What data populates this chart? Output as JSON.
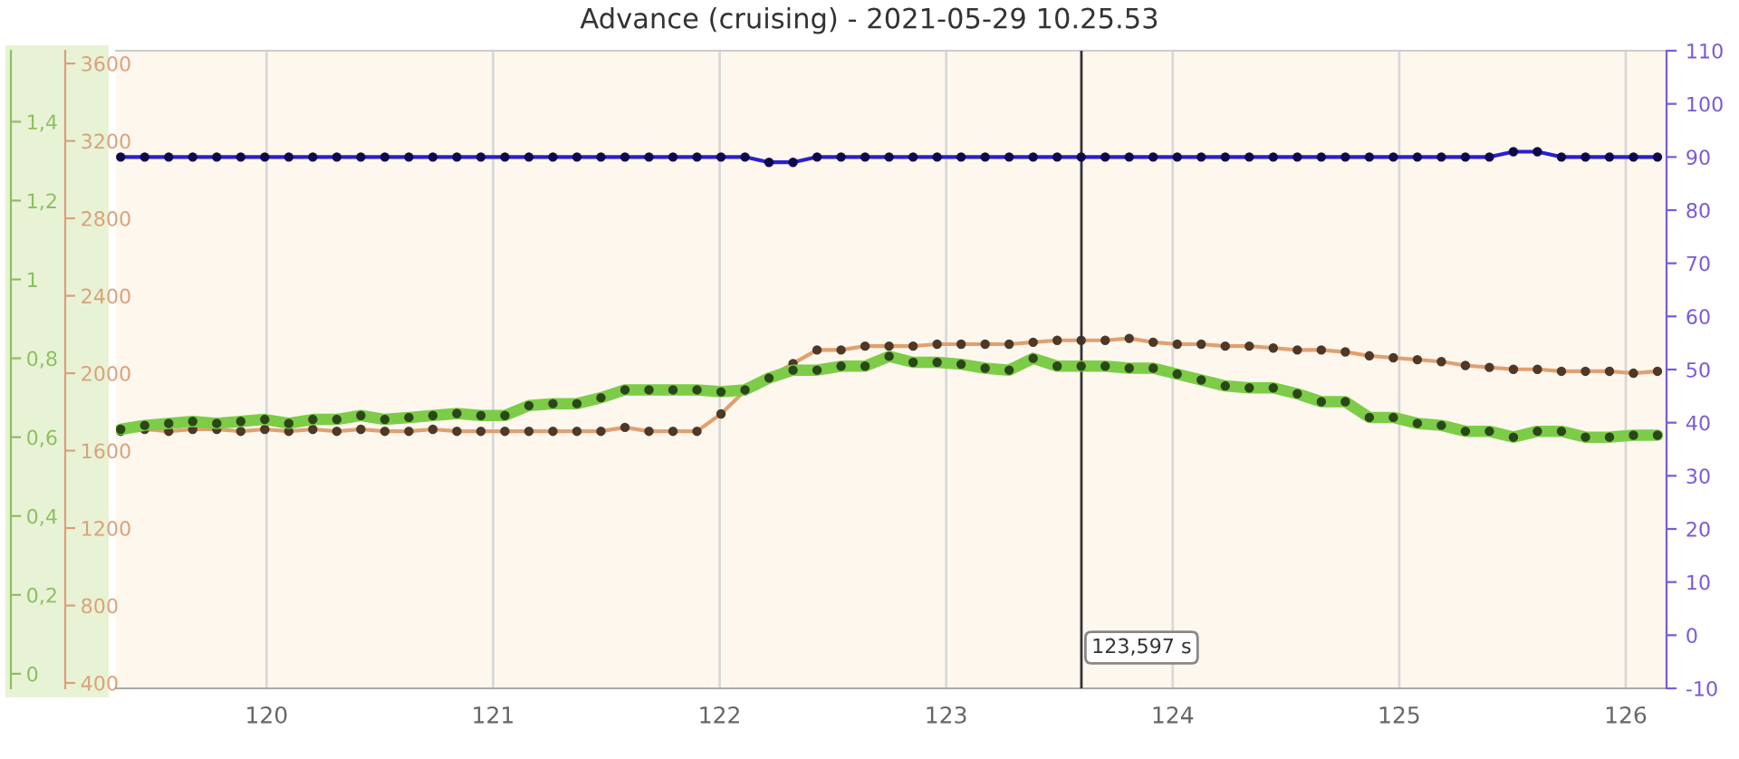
{
  "chart_data": {
    "type": "line",
    "title": "Advance (cruising) - 2021-05-29 10.25.53",
    "x": [
      119.356,
      119.462,
      119.568,
      119.674,
      119.78,
      119.886,
      119.992,
      120.098,
      120.204,
      120.31,
      120.416,
      120.522,
      120.628,
      120.734,
      120.84,
      120.946,
      121.052,
      121.158,
      121.264,
      121.37,
      121.476,
      121.582,
      121.688,
      121.794,
      121.9,
      122.006,
      122.112,
      122.218,
      122.324,
      122.43,
      122.536,
      122.642,
      122.748,
      122.854,
      122.96,
      123.066,
      123.172,
      123.278,
      123.384,
      123.49,
      123.596,
      123.702,
      123.808,
      123.914,
      124.02,
      124.126,
      124.232,
      124.338,
      124.444,
      124.55,
      124.656,
      124.762,
      124.868,
      124.974,
      125.08,
      125.186,
      125.292,
      125.398,
      125.504,
      125.61,
      125.716,
      125.822,
      125.928,
      126.034,
      126.14
    ],
    "series": [
      {
        "axis": "y3",
        "color": "#7ccc48",
        "values": [
          0.62,
          0.63,
          0.635,
          0.64,
          0.635,
          0.64,
          0.645,
          0.635,
          0.645,
          0.645,
          0.655,
          0.645,
          0.65,
          0.655,
          0.66,
          0.655,
          0.655,
          0.68,
          0.685,
          0.685,
          0.7,
          0.72,
          0.72,
          0.72,
          0.72,
          0.715,
          0.72,
          0.75,
          0.77,
          0.77,
          0.78,
          0.78,
          0.805,
          0.79,
          0.79,
          0.785,
          0.775,
          0.77,
          0.8,
          0.78,
          0.78,
          0.78,
          0.775,
          0.775,
          0.76,
          0.745,
          0.73,
          0.725,
          0.725,
          0.71,
          0.69,
          0.69,
          0.65,
          0.65,
          0.635,
          0.63,
          0.615,
          0.615,
          0.6,
          0.615,
          0.615,
          0.6,
          0.6,
          0.605,
          0.605
        ]
      },
      {
        "axis": "y",
        "color": "#e0a070",
        "values": [
          1700,
          1710,
          1700,
          1710,
          1710,
          1700,
          1710,
          1700,
          1710,
          1700,
          1710,
          1700,
          1700,
          1710,
          1700,
          1700,
          1700,
          1700,
          1700,
          1700,
          1700,
          1720,
          1700,
          1700,
          1700,
          1790,
          1910,
          1980,
          2050,
          2120,
          2120,
          2140,
          2140,
          2140,
          2150,
          2150,
          2150,
          2150,
          2160,
          2170,
          2170,
          2170,
          2180,
          2160,
          2150,
          2150,
          2140,
          2140,
          2130,
          2120,
          2120,
          2110,
          2090,
          2080,
          2070,
          2060,
          2040,
          2030,
          2020,
          2020,
          2010,
          2010,
          2010,
          2000,
          2010
        ]
      },
      {
        "axis": "y2",
        "color": "#2a1fd0",
        "values": [
          90,
          90,
          90,
          90,
          90,
          90,
          90,
          90,
          90,
          90,
          90,
          90,
          90,
          90,
          90,
          90,
          90,
          90,
          90,
          90,
          90,
          90,
          90,
          90,
          90,
          90,
          90,
          89,
          89,
          90,
          90,
          90,
          90,
          90,
          90,
          90,
          90,
          90,
          90,
          90,
          90,
          90,
          90,
          90,
          90,
          90,
          90,
          90,
          90,
          90,
          90,
          90,
          90,
          90,
          90,
          90,
          90,
          90,
          91,
          91,
          90,
          90,
          90,
          90,
          90
        ]
      }
    ],
    "xlim": [
      119.335,
      126.18
    ],
    "xticks": [
      120,
      121,
      122,
      123,
      124,
      125,
      126
    ],
    "ylim": [
      372,
      3666
    ],
    "yticks": [
      400,
      800,
      1200,
      1600,
      2000,
      2400,
      2800,
      3200,
      3600
    ],
    "y2lim": [
      -10,
      110
    ],
    "y2ticks": [
      -10,
      0,
      10,
      20,
      30,
      40,
      50,
      60,
      70,
      80,
      90,
      100,
      110
    ],
    "y3lim": [
      -0.037,
      1.58
    ],
    "y3ticks": [
      0,
      {
        "value": 0.2,
        "label": "0,2"
      },
      {
        "value": 0.4,
        "label": "0,4"
      },
      {
        "value": 0.6,
        "label": "0,6"
      },
      {
        "value": 0.8,
        "label": "0,8"
      },
      1,
      {
        "value": 1.2,
        "label": "1,2"
      },
      {
        "value": 1.4,
        "label": "1,4"
      }
    ],
    "grid": "x",
    "marker": "circle",
    "ref_lines": [
      {
        "axis": "x",
        "value": 123.597,
        "label": "123,597 s",
        "color": "#333333"
      }
    ]
  }
}
